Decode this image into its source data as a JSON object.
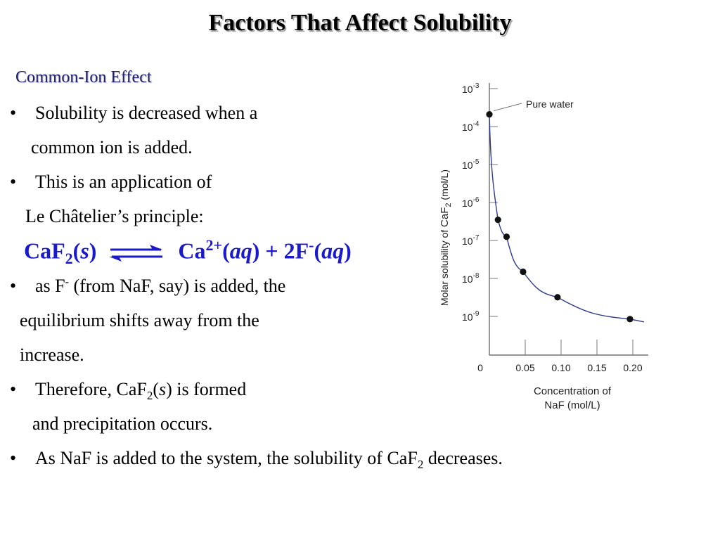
{
  "title": "Factors That Affect Solubility",
  "subtitle": "Common-Ion Effect",
  "bullet_char": "•",
  "bullets": {
    "b1_l1": "Solubility is decreased when a",
    "b1_l2": "common ion is added.",
    "b2_l1": "This is an application of",
    "b2_l2": "Le Châtelier’s principle:",
    "b3_l1_pre": "as F",
    "b3_l1_sup": "-",
    "b3_l1_post": " (from NaF, say) is added, the",
    "b3_l2": "equilibrium shifts away from the",
    "b3_l3": "increase.",
    "b4_l1_pre": "Therefore, CaF",
    "b4_l1_sub": "2",
    "b4_l1_open": "(",
    "b4_l1_state": "s",
    "b4_l1_post": ") is formed",
    "b4_l2": "and precipitation occurs.",
    "b5_pre": "As NaF is added to the system, the solubility of CaF",
    "b5_sub": "2",
    "b5_post": " decreases."
  },
  "equation": {
    "reactant": "CaF",
    "reactant_sub": "2",
    "reactant_state_open": "(",
    "reactant_state": "s",
    "reactant_state_close": ")",
    "product1": "Ca",
    "product1_charge": "2+",
    "product1_state_open": "(",
    "product1_state": "aq",
    "product1_state_close": ")",
    "plus": " + ",
    "product2": "2F",
    "product2_charge": "-",
    "product2_state_open": "(",
    "product2_state": "aq",
    "product2_state_close": ")",
    "color": "#1a1acc"
  },
  "chart_data": {
    "type": "scatter",
    "ylabel_pre": "Molar solubility of ",
    "ylabel_formula": "CaF",
    "ylabel_sub": "2",
    "ylabel_post": " (mol/L)",
    "xlabel_line1": "Concentration of",
    "xlabel_line2_formula": "NaF",
    "xlabel_line2_post": " (mol/L)",
    "y_scale": "log",
    "y_base": "10",
    "y_tick_exponents": [
      "-3",
      "-4",
      "-5",
      "-6",
      "-7",
      "-8",
      "-9"
    ],
    "x_ticks": [
      "0",
      "0.05",
      "0.10",
      "0.15",
      "0.20"
    ],
    "xlim": [
      0,
      0.21
    ],
    "ylim_exp": [
      -9.6,
      -3
    ],
    "points": [
      {
        "x": 0.0,
        "y": 0.00021
      },
      {
        "x": 0.012,
        "y": 3.5e-07
      },
      {
        "x": 0.024,
        "y": 1.25e-07
      },
      {
        "x": 0.047,
        "y": 1.5e-08
      },
      {
        "x": 0.095,
        "y": 3.2e-09
      },
      {
        "x": 0.196,
        "y": 8.5e-10
      }
    ],
    "annotation": "Pure water",
    "point_color": "#111111",
    "curve_color": "#2e3a8c"
  }
}
